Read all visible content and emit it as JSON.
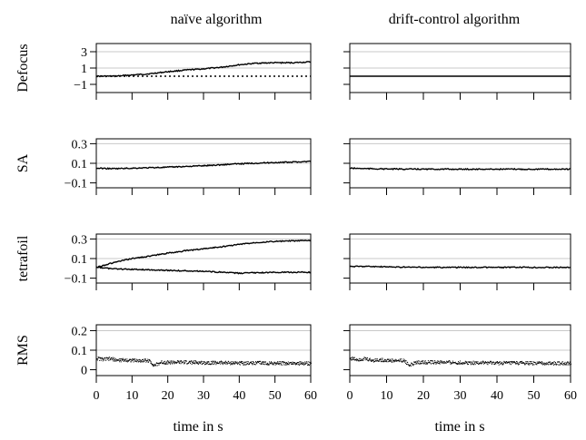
{
  "figure": {
    "column_titles": [
      "naïve algorithm",
      "drift-control algorithm"
    ],
    "row_labels": [
      "Defocus",
      "SA",
      "tetrafoil",
      "RMS"
    ],
    "x_axis_title": "time in s"
  },
  "chart_data": [
    {
      "id": "defocus-naive",
      "type": "line",
      "ylabel": "Defocus",
      "xlim": [
        0,
        60
      ],
      "ylim": [
        -2,
        4
      ],
      "yticks": [
        -1,
        1,
        3
      ],
      "ytick_labels": [
        "−1",
        "1",
        "3"
      ],
      "gridlines": [
        1,
        3
      ],
      "series": [
        {
          "x": [
            0,
            5,
            10,
            15,
            20,
            25,
            30,
            35,
            40,
            45,
            50,
            55,
            60
          ],
          "y": [
            0.0,
            0.0,
            0.15,
            0.3,
            0.55,
            0.75,
            0.9,
            1.1,
            1.4,
            1.6,
            1.65,
            1.65,
            1.75
          ],
          "style": "solid"
        },
        {
          "x": [
            0,
            60
          ],
          "y": [
            0,
            0
          ],
          "style": "dotted"
        }
      ]
    },
    {
      "id": "defocus-drift",
      "type": "line",
      "ylabel": "Defocus",
      "xlim": [
        0,
        60
      ],
      "ylim": [
        -2,
        4
      ],
      "yticks": [
        -1,
        1,
        3
      ],
      "ytick_labels": [
        "−1",
        "1",
        "3"
      ],
      "gridlines": [
        1,
        3
      ],
      "series": [
        {
          "x": [
            0,
            60
          ],
          "y": [
            0,
            0
          ],
          "style": "solid"
        }
      ]
    },
    {
      "id": "sa-naive",
      "type": "line",
      "ylabel": "SA",
      "xlim": [
        0,
        60
      ],
      "ylim": [
        -0.15,
        0.35
      ],
      "yticks": [
        -0.1,
        0.1,
        0.3
      ],
      "ytick_labels": [
        "−0.1",
        "0.1",
        "0.3"
      ],
      "gridlines": [
        0.1,
        0.3
      ],
      "series": [
        {
          "x": [
            0,
            5,
            10,
            15,
            20,
            25,
            30,
            35,
            40,
            45,
            50,
            55,
            60
          ],
          "y": [
            0.05,
            0.045,
            0.05,
            0.055,
            0.06,
            0.068,
            0.075,
            0.085,
            0.095,
            0.102,
            0.108,
            0.112,
            0.12
          ],
          "style": "solid"
        }
      ]
    },
    {
      "id": "sa-drift",
      "type": "line",
      "ylabel": "SA",
      "xlim": [
        0,
        60
      ],
      "ylim": [
        -0.15,
        0.35
      ],
      "yticks": [
        -0.1,
        0.1,
        0.3
      ],
      "ytick_labels": [
        "−0.1",
        "0.1",
        "0.3"
      ],
      "gridlines": [
        0.1,
        0.3
      ],
      "series": [
        {
          "x": [
            0,
            5,
            10,
            20,
            30,
            40,
            50,
            60
          ],
          "y": [
            0.05,
            0.045,
            0.042,
            0.04,
            0.04,
            0.04,
            0.04,
            0.04
          ],
          "style": "solid"
        }
      ]
    },
    {
      "id": "tetrafoil-naive",
      "type": "line",
      "ylabel": "tetrafoil",
      "xlim": [
        0,
        60
      ],
      "ylim": [
        -0.15,
        0.35
      ],
      "yticks": [
        -0.1,
        0.1,
        0.3
      ],
      "ytick_labels": [
        "−0.1",
        "0.1",
        "0.3"
      ],
      "gridlines": [
        0.1,
        0.3
      ],
      "series": [
        {
          "x": [
            0,
            5,
            10,
            15,
            20,
            25,
            30,
            35,
            40,
            45,
            50,
            55,
            60
          ],
          "y": [
            0.01,
            0.06,
            0.1,
            0.125,
            0.155,
            0.18,
            0.2,
            0.22,
            0.245,
            0.265,
            0.275,
            0.28,
            0.285
          ],
          "style": "solid"
        },
        {
          "x": [
            0,
            5,
            10,
            15,
            20,
            25,
            30,
            35,
            40,
            45,
            50,
            55,
            60
          ],
          "y": [
            0.01,
            -0.005,
            -0.01,
            -0.015,
            -0.02,
            -0.025,
            -0.03,
            -0.04,
            -0.05,
            -0.045,
            -0.04,
            -0.04,
            -0.04
          ],
          "style": "solid"
        }
      ]
    },
    {
      "id": "tetrafoil-drift",
      "type": "line",
      "ylabel": "tetrafoil",
      "xlim": [
        0,
        60
      ],
      "ylim": [
        -0.15,
        0.35
      ],
      "yticks": [
        -0.1,
        0.1,
        0.3
      ],
      "ytick_labels": [
        "−0.1",
        "0.1",
        "0.3"
      ],
      "gridlines": [
        0.1,
        0.3
      ],
      "series": [
        {
          "x": [
            0,
            5,
            10,
            20,
            30,
            40,
            50,
            60
          ],
          "y": [
            0.02,
            0.02,
            0.015,
            0.01,
            0.01,
            0.01,
            0.01,
            0.01
          ],
          "style": "solid"
        }
      ]
    },
    {
      "id": "rms-naive",
      "type": "scatter",
      "ylabel": "RMS",
      "xlim": [
        0,
        60
      ],
      "ylim": [
        -0.03,
        0.23
      ],
      "yticks": [
        0,
        0.1,
        0.2
      ],
      "ytick_labels": [
        "0",
        "0.1",
        "0.2"
      ],
      "gridlines": [
        0.1,
        0.2
      ],
      "xticks": [
        0,
        10,
        20,
        30,
        40,
        50,
        60
      ],
      "xtick_labels": [
        "0",
        "10",
        "20",
        "30",
        "40",
        "50",
        "60"
      ],
      "xlabel": "time in s",
      "series": [
        {
          "x": [
            0,
            2,
            4,
            6,
            8,
            10,
            12,
            14,
            15,
            16,
            17,
            18,
            20,
            25,
            30,
            35,
            40,
            45,
            50,
            55,
            60
          ],
          "y": [
            0.06,
            0.055,
            0.058,
            0.05,
            0.052,
            0.05,
            0.048,
            0.05,
            0.045,
            0.025,
            0.03,
            0.04,
            0.04,
            0.04,
            0.038,
            0.038,
            0.036,
            0.037,
            0.035,
            0.035,
            0.035
          ]
        }
      ]
    },
    {
      "id": "rms-drift",
      "type": "scatter",
      "ylabel": "RMS",
      "xlim": [
        0,
        60
      ],
      "ylim": [
        -0.03,
        0.23
      ],
      "yticks": [
        0,
        0.1,
        0.2
      ],
      "ytick_labels": [
        "0",
        "0.1",
        "0.2"
      ],
      "gridlines": [
        0.1,
        0.2
      ],
      "xticks": [
        0,
        10,
        20,
        30,
        40,
        50,
        60
      ],
      "xtick_labels": [
        "0",
        "10",
        "20",
        "30",
        "40",
        "50",
        "60"
      ],
      "xlabel": "time in s",
      "series": [
        {
          "x": [
            0,
            2,
            4,
            6,
            8,
            10,
            12,
            14,
            15,
            16,
            17,
            18,
            20,
            25,
            30,
            35,
            40,
            45,
            50,
            55,
            60
          ],
          "y": [
            0.06,
            0.055,
            0.058,
            0.05,
            0.052,
            0.05,
            0.048,
            0.05,
            0.045,
            0.025,
            0.03,
            0.04,
            0.04,
            0.04,
            0.038,
            0.038,
            0.036,
            0.037,
            0.035,
            0.035,
            0.035
          ]
        }
      ]
    }
  ]
}
